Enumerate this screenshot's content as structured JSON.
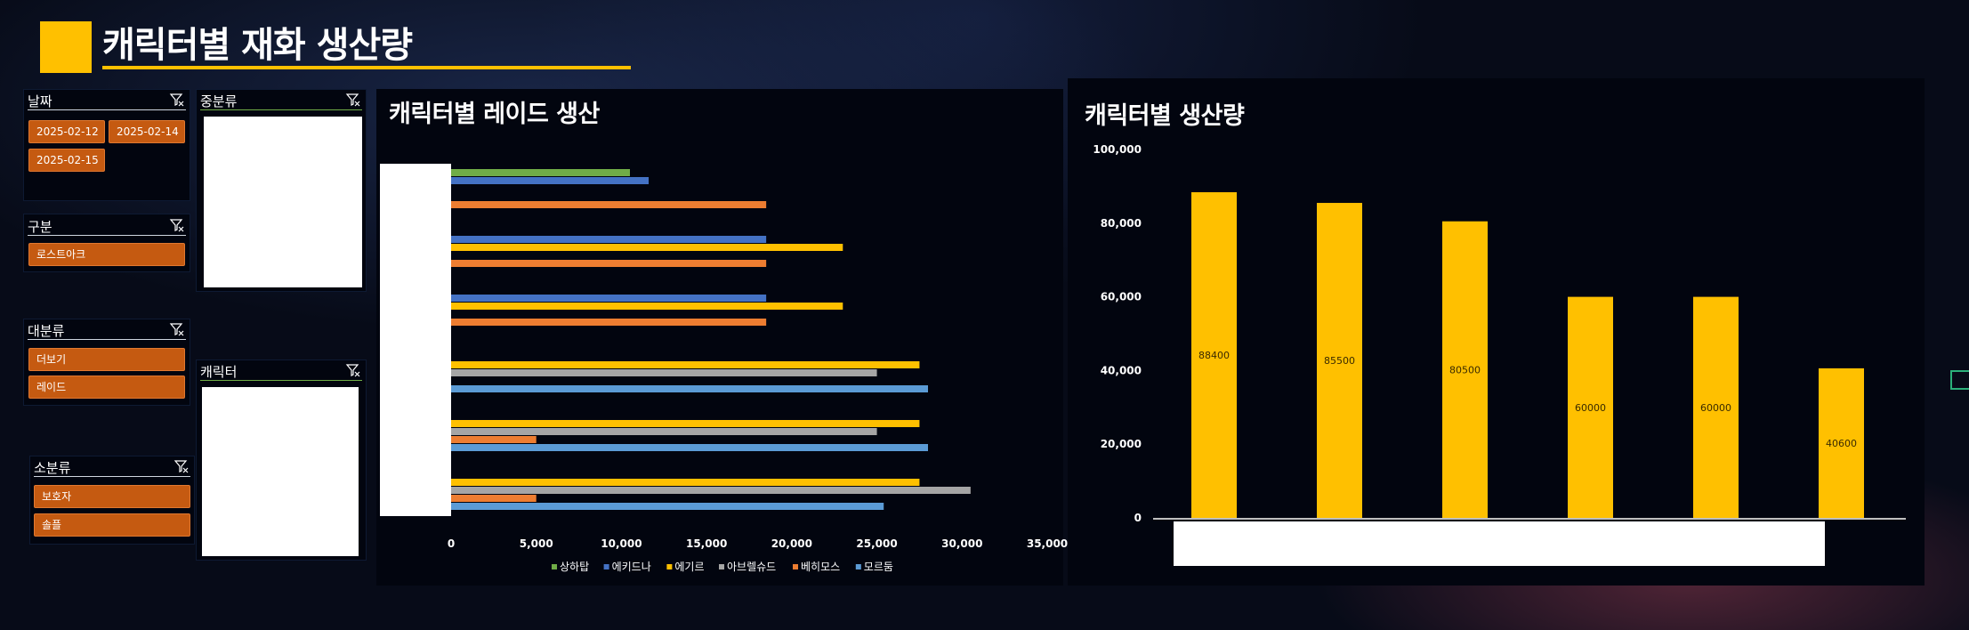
{
  "page": {
    "title": "캐릭터별 재화 생산량"
  },
  "slicers": {
    "date": {
      "title": "날짜",
      "items": [
        "2025-02-12",
        "2025-02-14",
        "2025-02-15"
      ]
    },
    "category": {
      "title": "구분",
      "items": [
        "로스트아크"
      ]
    },
    "major": {
      "title": "대분류",
      "items": [
        "더보기",
        "레이드"
      ]
    },
    "minor": {
      "title": "소분류",
      "items": [
        "보호자",
        "솔플"
      ]
    },
    "middle": {
      "title": "중분류",
      "items": []
    },
    "character": {
      "title": "캐릭터",
      "items": []
    }
  },
  "colors": {
    "accent": "#ffc000",
    "chip": "#c55a11",
    "sanghatap": "#70ad47",
    "ekidna": "#4472c4",
    "egir": "#ffc000",
    "abrel": "#a5a5a5",
    "behemoth": "#ed7d31",
    "mordoom": "#5b9bd5"
  },
  "chart_data": [
    {
      "type": "bar",
      "orientation": "horizontal",
      "title": "캐릭터별 레이드 생산",
      "categories": [
        "",
        "",
        "",
        "",
        "",
        ""
      ],
      "xlim": [
        0,
        35000
      ],
      "xticks": [
        "0",
        "5,000",
        "10,000",
        "15,000",
        "20,000",
        "25,000",
        "30,000",
        "35,000"
      ],
      "legend_position": "bottom",
      "grid": false,
      "series": [
        {
          "name": "상하탑",
          "color": "#70ad47",
          "values": [
            10500,
            null,
            null,
            null,
            null,
            null
          ]
        },
        {
          "name": "에키드나",
          "color": "#4472c4",
          "values": [
            11600,
            18500,
            18500,
            null,
            null,
            null
          ]
        },
        {
          "name": "에기르",
          "color": "#ffc000",
          "values": [
            null,
            23000,
            23000,
            27500,
            27500,
            27500
          ]
        },
        {
          "name": "아브렐슈드",
          "color": "#a5a5a5",
          "values": [
            null,
            null,
            null,
            25000,
            25000,
            30500
          ]
        },
        {
          "name": "베히모스",
          "color": "#ed7d31",
          "values": [
            18500,
            18500,
            18500,
            null,
            5000,
            5000
          ]
        },
        {
          "name": "모르둠",
          "color": "#5b9bd5",
          "values": [
            null,
            null,
            null,
            28000,
            28000,
            25400
          ]
        }
      ]
    },
    {
      "type": "bar",
      "title": "캐릭터별 생산량",
      "categories": [
        "",
        "",
        "",
        "",
        "",
        ""
      ],
      "values": [
        88400,
        85500,
        80500,
        60000,
        60000,
        40600
      ],
      "data_labels": [
        "88400",
        "85500",
        "80500",
        "60000",
        "60000",
        "40600"
      ],
      "ylim": [
        0,
        100000
      ],
      "yticks": [
        "0",
        "20,000",
        "40,000",
        "60,000",
        "80,000",
        "100,000"
      ],
      "color": "#ffc000",
      "grid": false
    }
  ]
}
